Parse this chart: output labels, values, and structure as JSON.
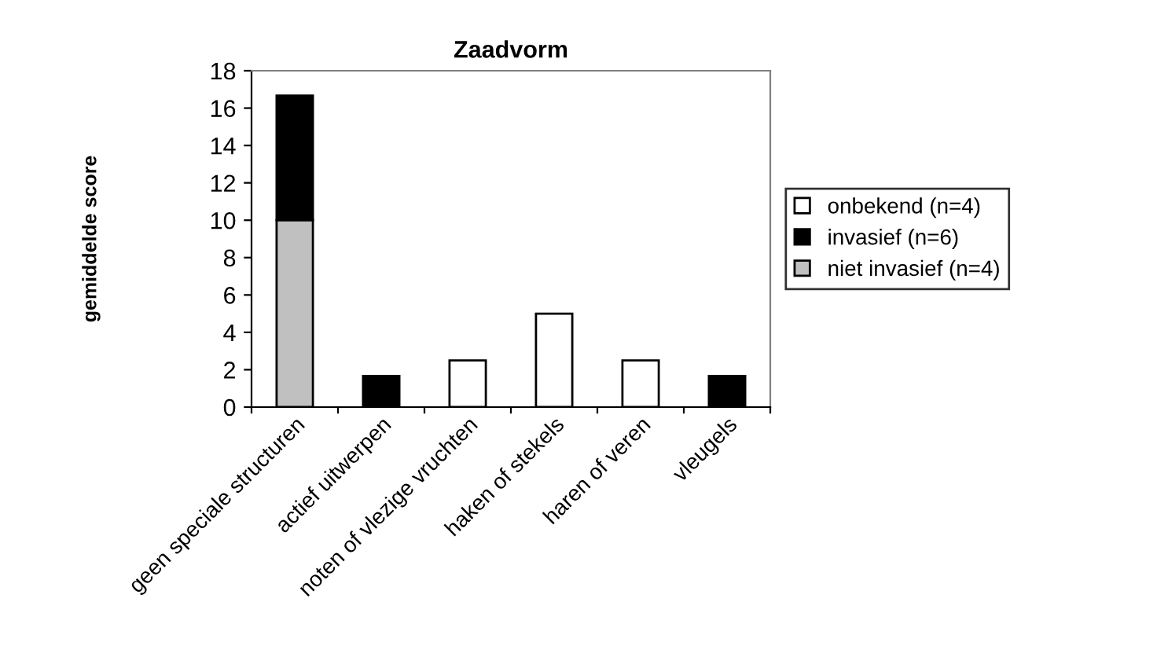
{
  "chart_data": {
    "type": "bar",
    "title": "Zaadvorm",
    "ylabel": "gemiddelde score",
    "stacked": true,
    "categories": [
      "geen speciale structuren",
      "actief uitwerpen",
      "noten of vlezige vruchten",
      "haken of stekels",
      "haren of veren",
      "vleugels"
    ],
    "series": [
      {
        "name": "niet invasief (n=4)",
        "color": "#c0c0c0",
        "values": [
          10,
          null,
          null,
          null,
          null,
          null
        ]
      },
      {
        "name": "invasief (n=6)",
        "color": "#000000",
        "values": [
          6.67,
          1.67,
          null,
          null,
          null,
          1.67
        ]
      },
      {
        "name": "onbekend (n=4)",
        "color": "#ffffff",
        "values": [
          null,
          null,
          2.5,
          5,
          2.5,
          null
        ]
      }
    ],
    "ylim": [
      0,
      18
    ],
    "yticks": [
      0,
      2,
      4,
      6,
      8,
      10,
      12,
      14,
      16,
      18
    ],
    "grid": false,
    "legend": "right"
  }
}
